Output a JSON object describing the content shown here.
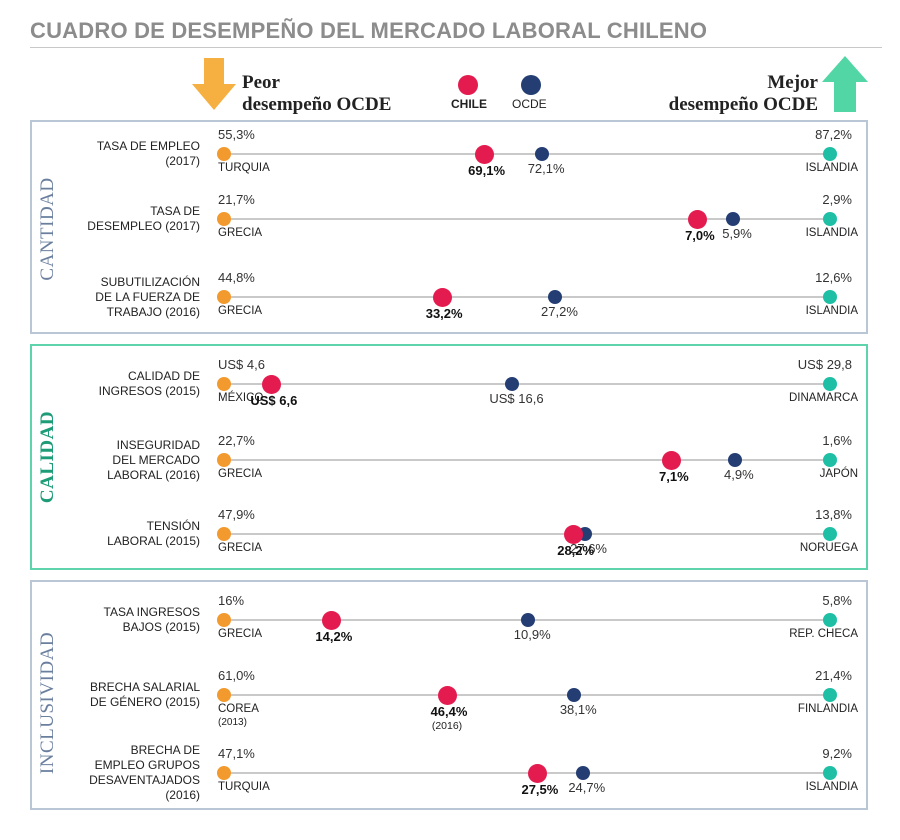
{
  "title": "CUADRO DE DESEMPEÑO DEL MERCADO LABORAL CHILENO",
  "legend": {
    "worse_line1": "Peor",
    "worse_line2": "desempeño OCDE",
    "better_line1": "Mejor",
    "better_line2": "desempeño OCDE",
    "chile": "CHILE",
    "ocde": "OCDE"
  },
  "colors": {
    "chile": "#e31b4f",
    "ocde": "#243e73",
    "worst": "#f29a2e",
    "best": "#1fbfa6",
    "arrow_down": "#f5b041",
    "arrow_up": "#52d6a5",
    "cantidad": "#6a7f9e",
    "calidad": "#1e9c78",
    "inclusividad": "#6a7f9e"
  },
  "sections": [
    {
      "name": "CANTIDAD",
      "rows": [
        {
          "label": [
            "TASA DE EMPLEO",
            "(2017)"
          ],
          "min_value": "55,3%",
          "min_country": "TURQUIA",
          "min_note": "",
          "max_value": "87,2%",
          "max_country": "ISLANDIA",
          "chile_value": "69,1%",
          "chile_note": "",
          "ocde_value": "72,1%",
          "chile_pos": 0.43,
          "ocde_pos": 0.525
        },
        {
          "label": [
            "TASA DE",
            "DESEMPLEO (2017)"
          ],
          "min_value": "21,7%",
          "min_country": "GRECIA",
          "min_note": "",
          "max_value": "2,9%",
          "max_country": "ISLANDIA",
          "chile_value": "7,0%",
          "chile_note": "",
          "ocde_value": "5,9%",
          "chile_pos": 0.782,
          "ocde_pos": 0.84
        },
        {
          "label": [
            "SUBUTILIZACIÓN",
            "DE LA FUERZA DE",
            "TRABAJO (2016)"
          ],
          "min_value": "44,8%",
          "min_country": "GRECIA",
          "min_note": "",
          "max_value": "12,6%",
          "max_country": "ISLANDIA",
          "chile_value": "33,2%",
          "chile_note": "",
          "ocde_value": "27,2%",
          "chile_pos": 0.36,
          "ocde_pos": 0.547
        }
      ]
    },
    {
      "name": "CALIDAD",
      "rows": [
        {
          "label": [
            "CALIDAD DE",
            "INGRESOS (2015)"
          ],
          "min_value": "US$ 4,6",
          "min_country": "MÉXICO",
          "min_note": "",
          "max_value": "US$ 29,8",
          "max_country": "DINAMARCA",
          "chile_value": "US$ 6,6",
          "chile_note": "",
          "ocde_value": "US$ 16,6",
          "chile_pos": 0.079,
          "ocde_pos": 0.476
        },
        {
          "label": [
            "INSEGURIDAD",
            "DEL MERCADO",
            "LABORAL (2016)"
          ],
          "min_value": "22,7%",
          "min_country": "GRECIA",
          "min_note": "",
          "max_value": "1,6%",
          "max_country": "JAPÓN",
          "chile_value": "7,1%",
          "chile_note": "",
          "ocde_value": "4,9%",
          "chile_pos": 0.739,
          "ocde_pos": 0.843
        },
        {
          "label": [
            "TENSIÓN",
            "LABORAL (2015)"
          ],
          "min_value": "47,9%",
          "min_country": "GRECIA",
          "min_note": "",
          "max_value": "13,8%",
          "max_country": "NORUEGA",
          "chile_value": "28,2%",
          "chile_note": "",
          "ocde_value": "27,6%",
          "chile_pos": 0.577,
          "ocde_pos": 0.595
        }
      ]
    },
    {
      "name": "INCLUSIVIDAD",
      "rows": [
        {
          "label": [
            "TASA INGRESOS",
            "BAJOS (2015)"
          ],
          "min_value": "16%",
          "min_country": "GRECIA",
          "min_note": "",
          "max_value": "5,8%",
          "max_country": "REP. CHECA",
          "chile_value": "14,2%",
          "chile_note": "",
          "ocde_value": "10,9%",
          "chile_pos": 0.178,
          "ocde_pos": 0.502
        },
        {
          "label": [
            "BRECHA SALARIAL",
            "DE GÉNERO (2015)"
          ],
          "min_value": "61,0%",
          "min_country": "COREA",
          "min_note": "(2013)",
          "max_value": "21,4%",
          "max_country": "FINLANDIA",
          "chile_value": "46,4%",
          "chile_note": "(2016)",
          "ocde_value": "38,1%",
          "chile_pos": 0.368,
          "ocde_pos": 0.578
        },
        {
          "label": [
            "BRECHA DE",
            "EMPLEO GRUPOS",
            "DESAVENTAJADOS",
            "(2016)"
          ],
          "min_value": "47,1%",
          "min_country": "TURQUIA",
          "min_note": "",
          "max_value": "9,2%",
          "max_country": "ISLANDIA",
          "chile_value": "27,5%",
          "chile_note": "",
          "ocde_value": "24,7%",
          "chile_pos": 0.518,
          "ocde_pos": 0.592
        }
      ]
    }
  ],
  "chart_data": {
    "type": "scatter",
    "title": "CUADRO DE DESEMPEÑO DEL MERCADO LABORAL CHILENO",
    "legend": [
      "CHILE",
      "OCDE"
    ],
    "categories": [
      "TASA DE EMPLEO (2017)",
      "TASA DE DESEMPLEO (2017)",
      "SUBUTILIZACIÓN DE LA FUERZA DE TRABAJO (2016)",
      "CALIDAD DE INGRESOS (2015)",
      "INSEGURIDAD DEL MERCADO LABORAL (2016)",
      "TENSIÓN LABORAL (2015)",
      "TASA INGRESOS BAJOS (2015)",
      "BRECHA SALARIAL DE GÉNERO (2015)",
      "BRECHA DE EMPLEO GRUPOS DESAVENTAJADOS (2016)"
    ],
    "series": [
      {
        "name": "CHILE",
        "values": [
          "69,1%",
          "7,0%",
          "33,2%",
          "US$ 6,6",
          "7,1%",
          "28,2%",
          "14,2%",
          "46,4%",
          "27,5%"
        ]
      },
      {
        "name": "OCDE",
        "values": [
          "72,1%",
          "5,9%",
          "27,2%",
          "US$ 16,6",
          "4,9%",
          "27,6%",
          "10,9%",
          "38,1%",
          "24,7%"
        ]
      }
    ],
    "worst": [
      "55,3%",
      "21,7%",
      "44,8%",
      "US$ 4,6",
      "22,7%",
      "47,9%",
      "16%",
      "61,0%",
      "47,1%"
    ],
    "best": [
      "87,2%",
      "2,9%",
      "12,6%",
      "US$ 29,8",
      "1,6%",
      "13,8%",
      "5,8%",
      "21,4%",
      "9,2%"
    ]
  }
}
